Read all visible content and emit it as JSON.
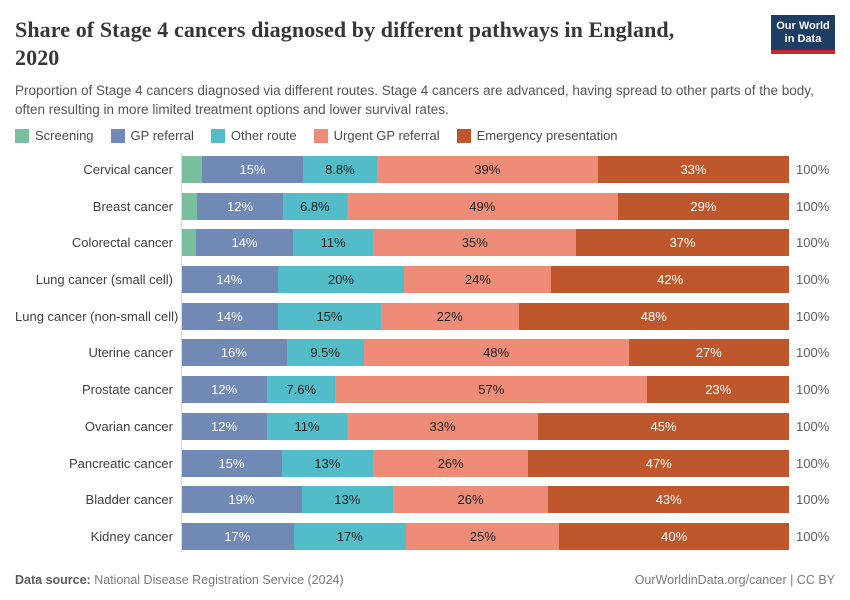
{
  "header": {
    "title_line1": "Share of Stage 4 cancers diagnosed by different pathways in England,",
    "title_line2": "2020",
    "subtitle": "Proportion of Stage 4 cancers diagnosed via different routes. Stage 4 cancers are advanced, having spread to other parts of the body, often resulting in more limited treatment options and lower survival rates.",
    "logo_line1": "Our World",
    "logo_line2": "in Data",
    "logo_colors": {
      "background": "#1d3d63",
      "underline": "#c8282d"
    }
  },
  "chart_data": {
    "type": "bar",
    "orientation": "horizontal",
    "stacked": true,
    "unit": "%",
    "title": "Share of Stage 4 cancers diagnosed by different pathways in England, 2020",
    "subtitle": "Proportion of Stage 4 cancers diagnosed via different routes. Stage 4 cancers are advanced, having spread to other parts of the body, often resulting in more limited treatment options and lower survival rates.",
    "legend_position": "top",
    "xlim": [
      0,
      100
    ],
    "row_total_label": "100%",
    "categories": [
      "Cervical cancer",
      "Breast cancer",
      "Colorectal cancer",
      "Lung cancer (small cell)",
      "Lung cancer (non-small cell)",
      "Uterine cancer",
      "Prostate cancer",
      "Ovarian cancer",
      "Pancreatic cancer",
      "Bladder cancer",
      "Kidney cancer"
    ],
    "series": [
      {
        "name": "Screening",
        "color": "#79bfa0",
        "label_color": "#202020",
        "values": [
          4.2,
          3.2,
          3,
          0,
          0,
          0,
          0,
          0,
          0,
          0,
          0
        ],
        "labels": [
          "",
          "",
          "",
          "",
          "",
          "",
          "",
          "",
          "",
          "",
          ""
        ]
      },
      {
        "name": "GP referral",
        "color": "#7189b5",
        "label_color": "#ffffff",
        "values": [
          15,
          12,
          14,
          14,
          14,
          16,
          12,
          12,
          15,
          19,
          17
        ],
        "labels": [
          "15%",
          "12%",
          "14%",
          "14%",
          "14%",
          "16%",
          "12%",
          "12%",
          "15%",
          "19%",
          "17%"
        ]
      },
      {
        "name": "Other route",
        "color": "#52bdc8",
        "label_color": "#202020",
        "values": [
          8.8,
          6.8,
          11,
          20,
          15,
          9.5,
          7.6,
          11,
          13,
          13,
          17
        ],
        "labels": [
          "8.8%",
          "6.8%",
          "11%",
          "20%",
          "15%",
          "9.5%",
          "7.6%",
          "11%",
          "13%",
          "13%",
          "17%"
        ]
      },
      {
        "name": "Urgent GP referral",
        "color": "#ee8c78",
        "label_color": "#202020",
        "values": [
          39,
          49,
          35,
          24,
          22,
          48,
          57,
          33,
          26,
          26,
          25
        ],
        "labels": [
          "39%",
          "49%",
          "35%",
          "24%",
          "22%",
          "48%",
          "57%",
          "33%",
          "26%",
          "26%",
          "25%"
        ]
      },
      {
        "name": "Emergency presentation",
        "color": "#be572c",
        "label_color": "#ffffff",
        "values": [
          33,
          29,
          37,
          42,
          48,
          27,
          23,
          45,
          47,
          43,
          40
        ],
        "labels": [
          "33%",
          "29%",
          "37%",
          "42%",
          "48%",
          "27%",
          "23%",
          "45%",
          "47%",
          "43%",
          "40%"
        ]
      }
    ]
  },
  "footer": {
    "datasource_label": "Data source:",
    "datasource_value": "National Disease Registration Service (2024)",
    "rights": "OurWorldinData.org/cancer | CC BY"
  }
}
